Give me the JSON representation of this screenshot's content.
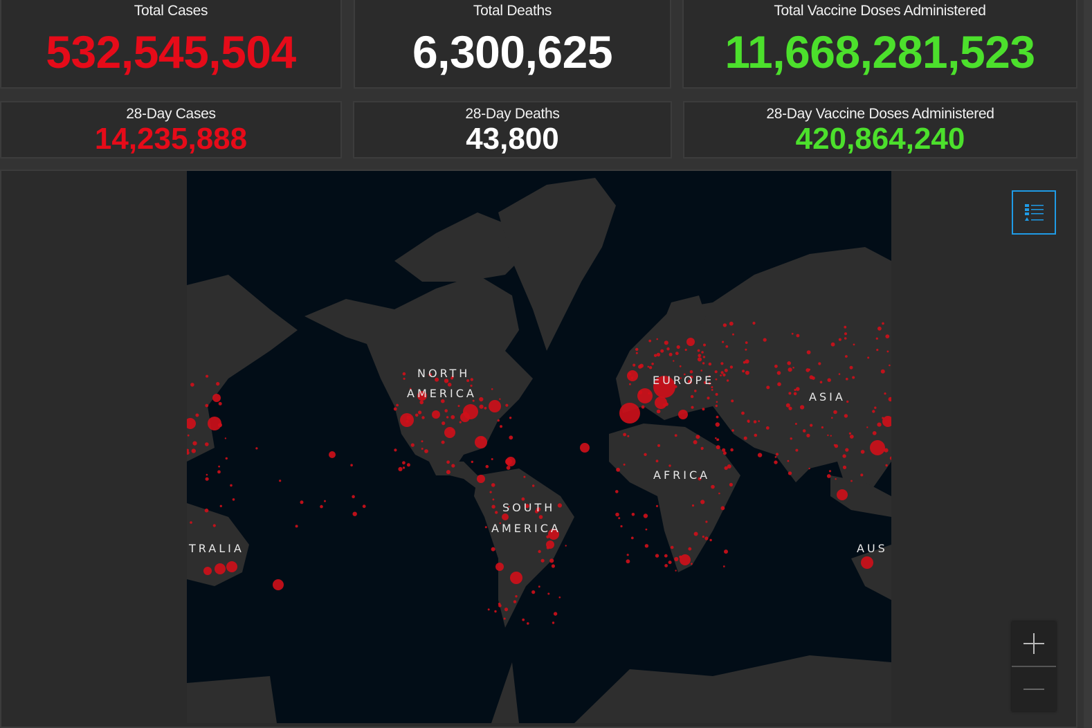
{
  "stats": {
    "total_cases": {
      "label": "Total Cases",
      "value": "532,545,504"
    },
    "total_deaths": {
      "label": "Total Deaths",
      "value": "6,300,625"
    },
    "total_vaccine": {
      "label": "Total Vaccine Doses Administered",
      "value": "11,668,281,523"
    },
    "cases_28": {
      "label": "28-Day Cases",
      "value": "14,235,888"
    },
    "deaths_28": {
      "label": "28-Day Deaths",
      "value": "43,800"
    },
    "vaccine_28": {
      "label": "28-Day Vaccine Doses Administered",
      "value": "420,864,240"
    }
  },
  "colors": {
    "cases": "#e60b19",
    "deaths": "#ffffff",
    "vaccine": "#4ce02c",
    "accent": "#1f9be6",
    "map_water": "#020d17",
    "map_land": "#2e2e2e"
  },
  "map": {
    "labels": {
      "north1": "NORTH",
      "north2": "AMERICA",
      "europe": "EUROPE",
      "asia": "ASIA",
      "africa": "AFRICA",
      "south1": "SOUTH",
      "south2": "AMERICA",
      "aus_left": "TRALIA",
      "aus_right": "AUS"
    },
    "controls": {
      "legend_icon": "legend-list-icon",
      "zoom_in_icon": "plus-icon",
      "zoom_out_icon": "minus-icon"
    }
  }
}
